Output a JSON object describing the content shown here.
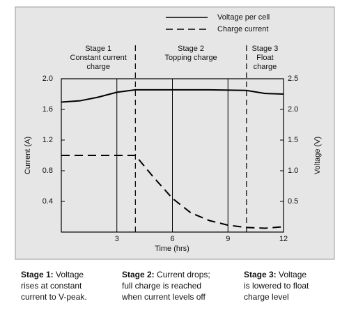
{
  "chart_data": {
    "type": "line",
    "x_label": "Time (hrs)",
    "y_label": "Current (A)",
    "y2_label": "Voltage (V)",
    "xlim": [
      0,
      12
    ],
    "xticks": [
      3,
      6,
      9,
      12
    ],
    "ylim": [
      0,
      2
    ],
    "yticks": [
      {
        "value": 2,
        "label": "2.0"
      },
      {
        "value": 1.6,
        "label": "1.6"
      },
      {
        "value": 1.2,
        "label": "1.2"
      },
      {
        "value": 0.8,
        "label": "0.8"
      },
      {
        "value": 0.4,
        "label": "0.4"
      }
    ],
    "y2lim": [
      0,
      2.5
    ],
    "y2ticks": [
      {
        "value": 2.5,
        "label": "2.5"
      },
      {
        "value": 2,
        "label": "2.0"
      },
      {
        "value": 1.5,
        "label": "1.5"
      },
      {
        "value": 1,
        "label": "1.0"
      },
      {
        "value": 0.5,
        "label": "0.5"
      }
    ],
    "grid": true,
    "series": [
      {
        "name": "Voltage per cell",
        "color": "#000000",
        "style": "solid",
        "axis": "y2",
        "x": [
          0,
          1,
          2,
          3,
          4,
          6,
          8,
          10,
          11,
          12
        ],
        "values": [
          2.12,
          2.14,
          2.2,
          2.28,
          2.32,
          2.32,
          2.32,
          2.31,
          2.26,
          2.25
        ]
      },
      {
        "name": "Charge current",
        "color": "#000000",
        "style": "dashed",
        "axis": "y",
        "x": [
          0,
          2,
          4,
          5,
          6,
          7,
          8,
          9,
          10,
          11,
          12
        ],
        "values": [
          1.0,
          1.0,
          1.0,
          0.71,
          0.44,
          0.25,
          0.15,
          0.09,
          0.06,
          0.05,
          0.07
        ]
      }
    ],
    "stage_boundaries": [
      4,
      10
    ],
    "stages": [
      {
        "x": 2,
        "lines": [
          "Stage 1",
          "Constant current",
          "charge"
        ]
      },
      {
        "x": 7,
        "lines": [
          "Stage 2",
          "Topping charge"
        ]
      },
      {
        "x": 11,
        "lines": [
          "Stage 3",
          "Float",
          "charge"
        ]
      }
    ]
  },
  "captions": [
    {
      "heading": "Stage 1:",
      "lines": [
        " Voltage",
        "rises at constant",
        "current to V-peak."
      ]
    },
    {
      "heading": "Stage 2:",
      "lines": [
        " Current drops;",
        "full charge is reached",
        "when current levels off"
      ]
    },
    {
      "heading": "Stage 3:",
      "lines": [
        " Voltage",
        "is lowered to float",
        "charge level"
      ]
    }
  ]
}
